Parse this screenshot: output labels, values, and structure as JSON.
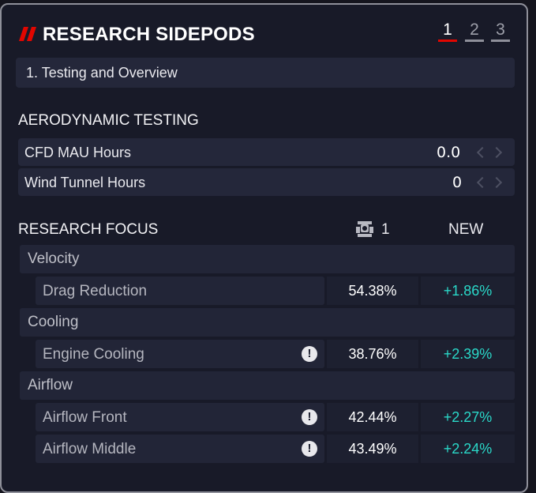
{
  "header": {
    "title": "RESEARCH SIDEPODS",
    "pages": [
      "1",
      "2",
      "3"
    ],
    "active_page": "1"
  },
  "section_selector": {
    "label": "1. Testing and Overview"
  },
  "aero": {
    "heading": "AERODYNAMIC TESTING",
    "rows": [
      {
        "label": "CFD MAU Hours",
        "value": "0.0"
      },
      {
        "label": "Wind Tunnel Hours",
        "value": "0"
      }
    ]
  },
  "focus": {
    "heading": "RESEARCH FOCUS",
    "current_count": "1",
    "new_label": "NEW",
    "groups": [
      {
        "name": "Velocity",
        "items": [
          {
            "name": "Drag Reduction",
            "current": "54.38%",
            "new": "+1.86%",
            "warning": false
          }
        ]
      },
      {
        "name": "Cooling",
        "items": [
          {
            "name": "Engine Cooling",
            "current": "38.76%",
            "new": "+2.39%",
            "warning": true
          }
        ]
      },
      {
        "name": "Airflow",
        "items": [
          {
            "name": "Airflow Front",
            "current": "42.44%",
            "new": "+2.27%",
            "warning": true
          },
          {
            "name": "Airflow Middle",
            "current": "43.49%",
            "new": "+2.24%",
            "warning": true
          }
        ]
      }
    ]
  },
  "colors": {
    "accent": "#e10600",
    "positive": "#2ad9c9",
    "panel": "#181a28"
  },
  "icons": {
    "warning": "!"
  }
}
